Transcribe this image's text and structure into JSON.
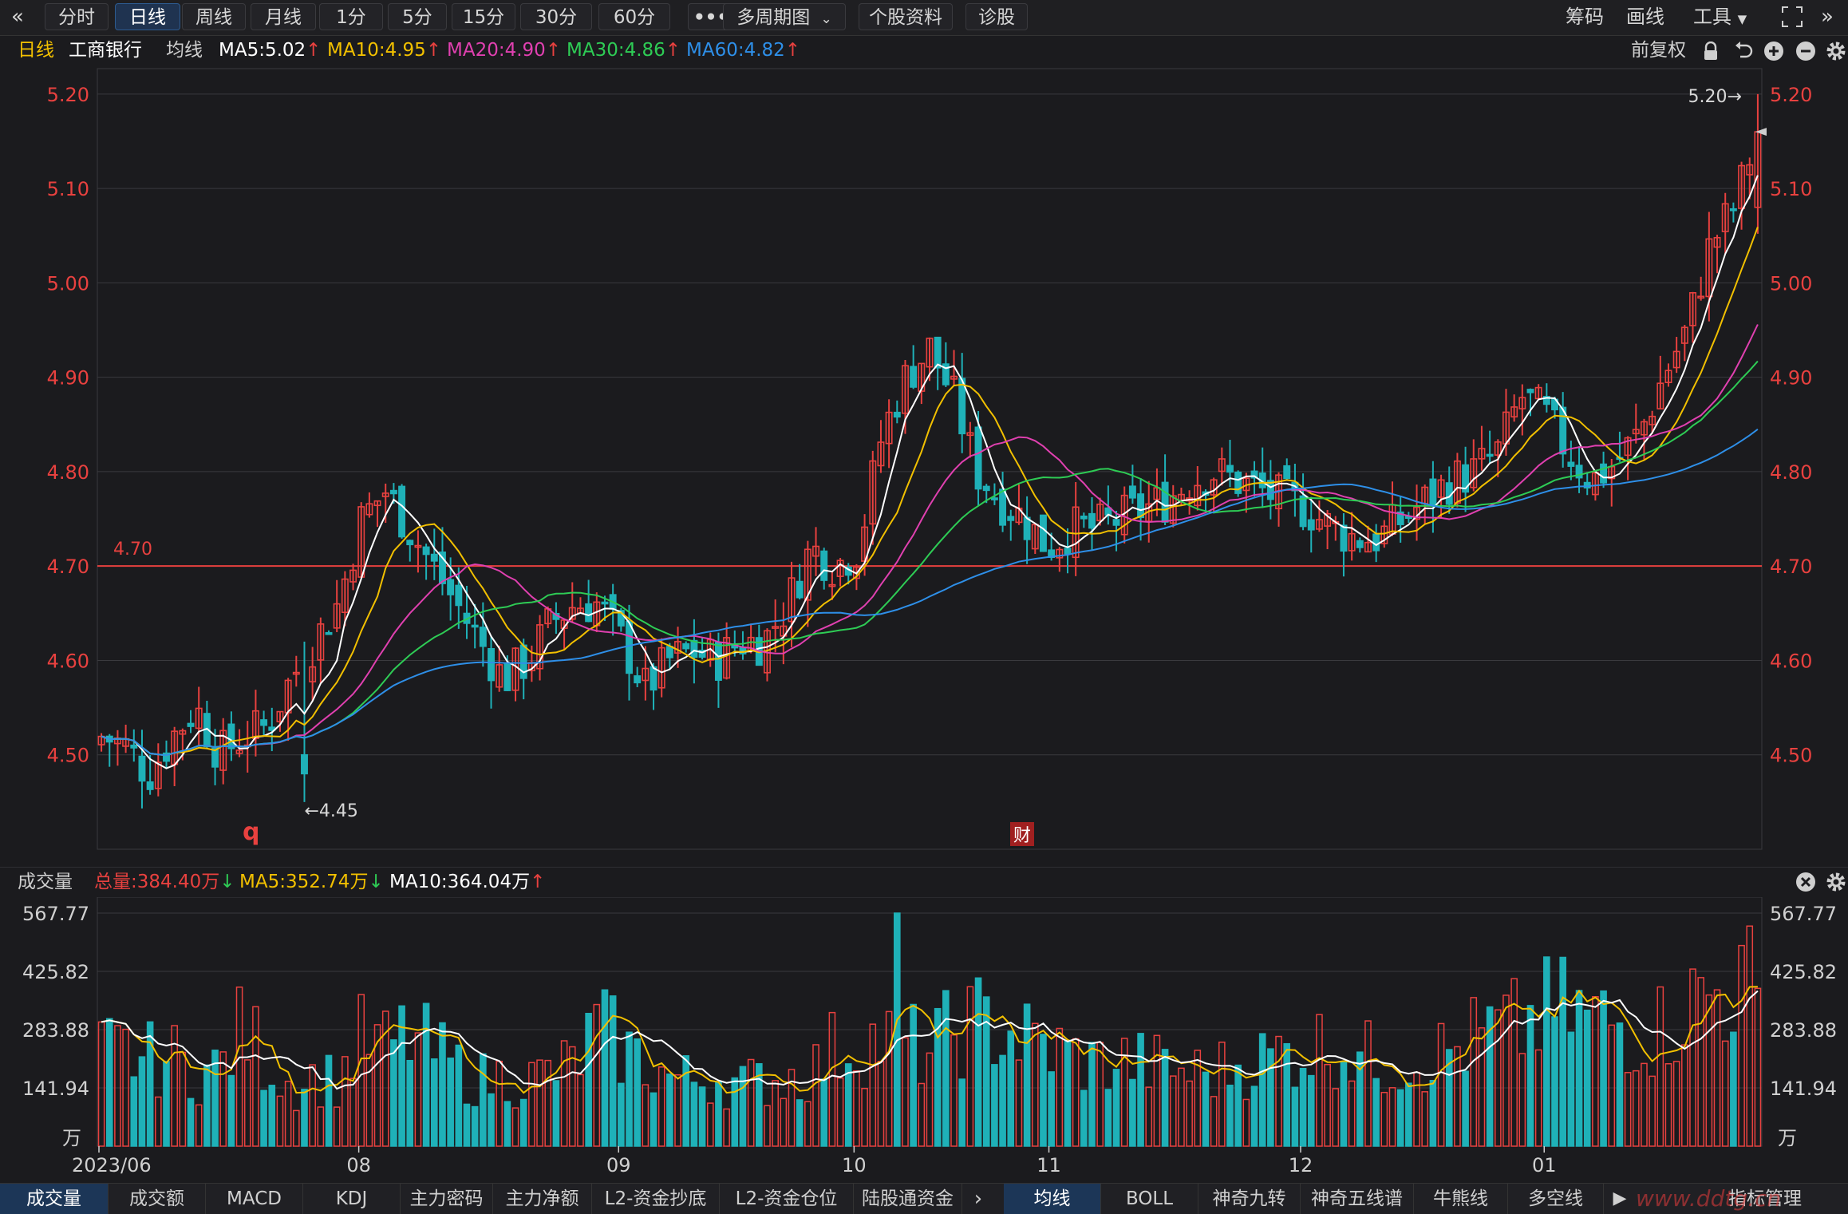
{
  "toolbar": {
    "back_icon": "double-chevron-left-icon",
    "tabs": [
      "分时",
      "日线",
      "周线",
      "月线",
      "1分",
      "5分",
      "15分",
      "30分",
      "60分"
    ],
    "active_tab": "日线",
    "more_label": "•••",
    "multi_period_label": "多周期图",
    "stock_info_label": "个股资料",
    "diagnose_label": "诊股",
    "right_items": [
      "筹码",
      "画线",
      "工具"
    ],
    "fullscreen_icon": "fullscreen-icon",
    "collapse_icon": "double-chevron-right-icon"
  },
  "price_header": {
    "period": "日线",
    "stock_name": "工商银行",
    "ma_label": "均线",
    "ma5": "MA5:5.02",
    "ma10": "MA10:4.95",
    "ma20": "MA20:4.90",
    "ma30": "MA30:4.86",
    "ma60": "MA60:4.82",
    "adjust_label": "前复权",
    "icons": [
      "lock-icon",
      "undo-icon",
      "zoom-in-icon",
      "zoom-out-icon",
      "settings-icon"
    ]
  },
  "volume_header": {
    "title": "成交量",
    "total": "总量:384.40万",
    "ma5": "MA5:352.74万",
    "ma10": "MA10:364.04万"
  },
  "markers": {
    "high_label": "5.20→",
    "low_label": "←4.45",
    "ref_line_label": "4.70",
    "q_marker": "q",
    "cai_marker": "财"
  },
  "colors": {
    "up": "#e8413f",
    "down": "#1fb1b8",
    "ma5": "#ffffff",
    "ma10": "#f2c000",
    "ma20": "#e040b0",
    "ma30": "#2ecc55",
    "ma60": "#2e8fe8",
    "ref_line": "#e8413f"
  },
  "chart_data": [
    {
      "type": "candlestick",
      "title": "工商银行 日线",
      "y_ticks": [
        "5.20",
        "5.10",
        "5.00",
        "4.90",
        "4.80",
        "4.70",
        "4.60",
        "4.50"
      ],
      "ylim": [
        4.4,
        5.21
      ],
      "x_ticks": [
        "2023/06",
        "08",
        "09",
        "10",
        "11",
        "12",
        "01"
      ],
      "reference_line": 4.7,
      "period_high": 5.2,
      "period_low": 4.45,
      "anchor_closes": [
        4.52,
        4.51,
        4.48,
        4.52,
        4.55,
        4.5,
        4.52,
        4.53,
        4.58,
        4.62,
        4.66,
        4.75,
        4.78,
        4.74,
        4.7,
        4.66,
        4.62,
        4.58,
        4.6,
        4.64,
        4.66,
        4.66,
        4.62,
        4.57,
        4.6,
        4.61,
        4.6,
        4.62,
        4.62,
        4.66,
        4.72,
        4.7,
        4.72,
        4.84,
        4.9,
        4.93,
        4.88,
        4.8,
        4.77,
        4.75,
        4.72,
        4.74,
        4.74,
        4.75,
        4.76,
        4.77,
        4.79,
        4.8,
        4.79,
        4.78,
        4.77,
        4.76,
        4.74,
        4.73,
        4.73,
        4.75,
        4.77,
        4.79,
        4.8,
        4.82,
        4.88,
        4.86,
        4.82,
        4.79,
        4.81,
        4.84,
        4.9,
        4.95,
        5.04,
        5.08,
        5.16
      ],
      "series_names": [
        "MA5",
        "MA10",
        "MA20",
        "MA30",
        "MA60"
      ]
    },
    {
      "type": "bar",
      "title": "成交量",
      "unit": "万",
      "y_ticks": [
        "567.77",
        "425.82",
        "283.88",
        "141.94"
      ],
      "ylim": [
        0,
        567.77
      ],
      "anchor_volumes": [
        230,
        230,
        210,
        215,
        180,
        190,
        290,
        210,
        150,
        170,
        160,
        260,
        240,
        270,
        230,
        190,
        160,
        170,
        160,
        180,
        200,
        290,
        240,
        200,
        170,
        160,
        170,
        150,
        160,
        170,
        180,
        240,
        250,
        260,
        250,
        230,
        280,
        300,
        290,
        260,
        240,
        220,
        200,
        210,
        200,
        190,
        180,
        180,
        200,
        210,
        230,
        240,
        250,
        230,
        200,
        210,
        220,
        230,
        260,
        280,
        290,
        320,
        330,
        310,
        300,
        280,
        290,
        340,
        370,
        390,
        384
      ],
      "series_names": [
        "MA5",
        "MA10"
      ]
    }
  ],
  "bottom_tabs_left": [
    "成交量",
    "成交额",
    "MACD",
    "KDJ",
    "主力密码",
    "主力净额",
    "L2-资金抄底",
    "L2-资金仓位",
    "陆股通资金"
  ],
  "bottom_tabs_right": [
    "均线",
    "BOLL",
    "神奇九转",
    "神奇五线谱",
    "牛熊线",
    "多空线"
  ],
  "bottom_tab_active_left": "成交量",
  "bottom_tab_active_right": "均线",
  "indicator_manage_label": "指标管理",
  "watermark": "www.ddtg.cn"
}
